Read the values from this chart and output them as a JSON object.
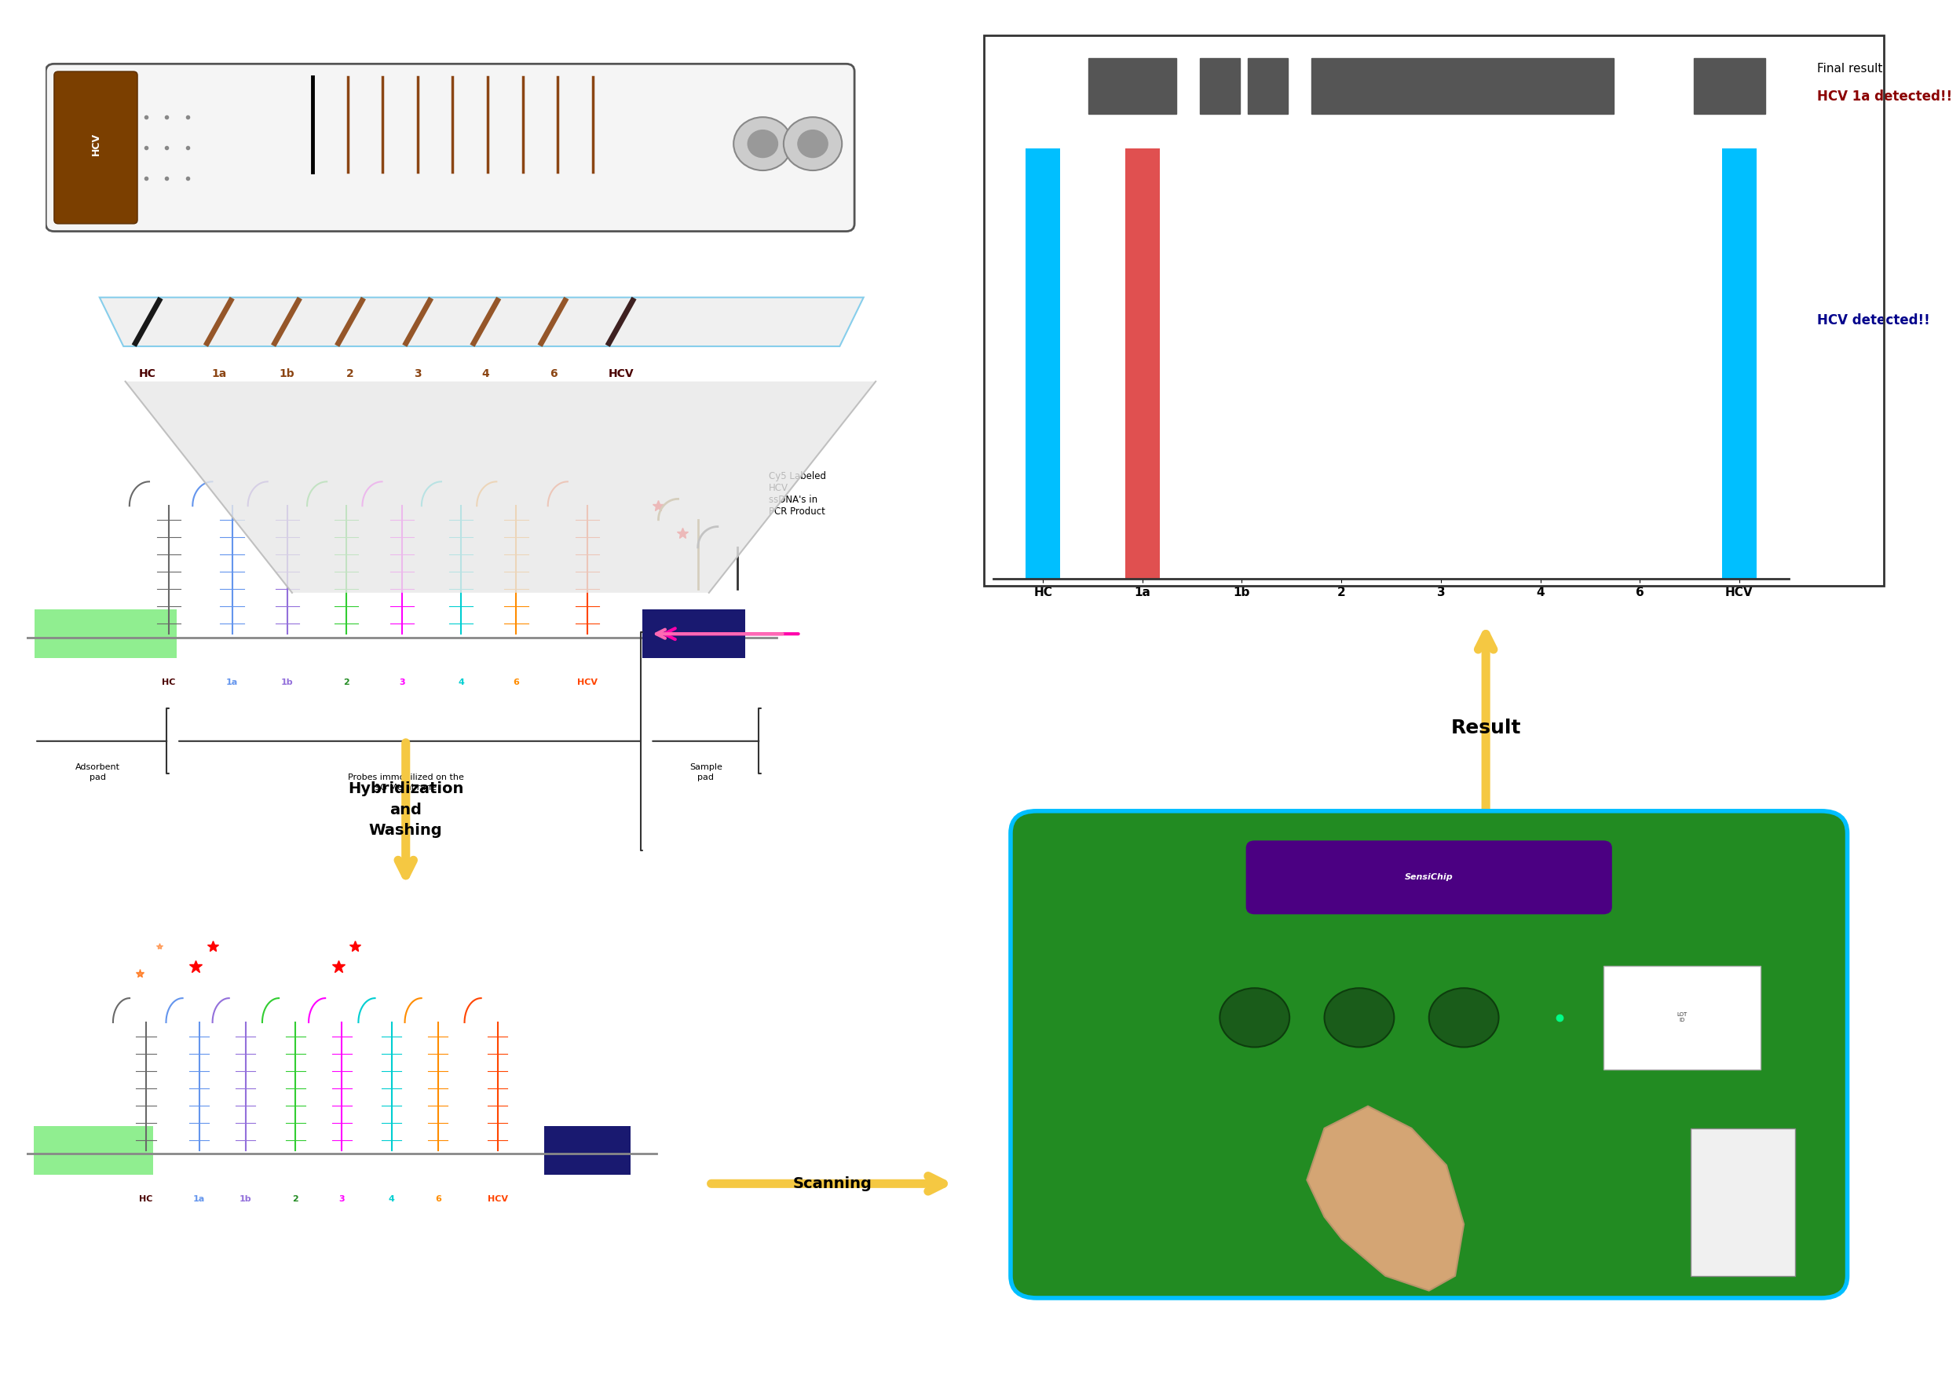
{
  "fig_width": 24.13,
  "fig_height": 17.31,
  "bg_color": "#ffffff",
  "bar_chart": {
    "categories": [
      "HC",
      "1a",
      "1b",
      "2",
      "3",
      "4",
      "6",
      "HCV"
    ],
    "bar_colors": [
      "#00bfff",
      "#e05050",
      "none",
      "none",
      "none",
      "none",
      "none",
      "#00bfff"
    ],
    "bar_heights": [
      1.0,
      1.0,
      0,
      0,
      0,
      0,
      0,
      1.0
    ],
    "title_line1": "Final result",
    "title_line2": "HCV 1a detected!!",
    "subtitle": "HCV detected!!",
    "title_color": "#000000",
    "title2_color": "#8b0000",
    "subtitle_color": "#00008b",
    "border_color": "#333333",
    "strip_bg": "#2a2a2a"
  },
  "labels": {
    "strip_labels": [
      "HC",
      "1a",
      "1b",
      "2",
      "3",
      "4",
      "6",
      "HCV"
    ],
    "strip_label_colors": {
      "HC": "#4a0000",
      "1a": "#8b4513",
      "1b": "#8b4513",
      "2": "#8b4513",
      "3": "#8b4513",
      "4": "#8b4513",
      "6": "#8b4513",
      "HCV": "#4a0000"
    }
  },
  "probe_colors": {
    "HC": "#696969",
    "1a": "#6495ed",
    "1b": "#9370db",
    "2": "#32cd32",
    "3": "#ff00ff",
    "4": "#00ced1",
    "6": "#ff8c00",
    "HCV": "#ff4500"
  },
  "membrane_strip_color": "#8b4513",
  "membrane_black_stripe": "#000000",
  "adsorbent_color": "#90ee90",
  "sample_pad_color": "#191970",
  "arrow_color": "#f5c842",
  "scanning_arrow_color": "#f5c842",
  "result_arrow_color": "#f5c842",
  "hybridization_text": "Hybridization\nand\nWashing",
  "scanning_text": "Scanning",
  "result_text": "Result",
  "adsorbent_text": "Adsorbent\npad",
  "probes_text": "Probes immobilized on the\n9G Membrane",
  "sample_pad_text": "Sample\npad",
  "cy5_text": "Cy5 Labeled\nHCV\nssDNA's in\nPCR Product"
}
